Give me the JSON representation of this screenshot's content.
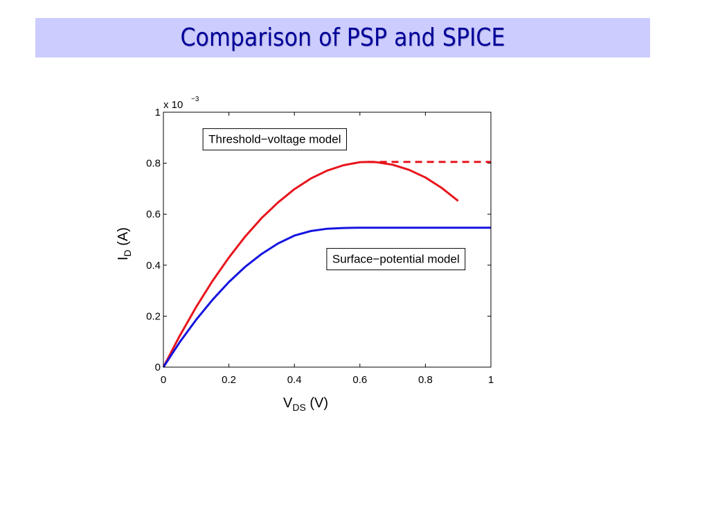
{
  "slide": {
    "title": "Comparison of PSP and SPICE",
    "title_bg_color": "#ccccff",
    "title_text_color": "#000099"
  },
  "chart_data": {
    "type": "line",
    "xlim": [
      0,
      1
    ],
    "ylim": [
      0,
      1
    ],
    "x_ticks": [
      0,
      0.2,
      0.4,
      0.6,
      0.8,
      1
    ],
    "y_ticks": [
      0,
      0.2,
      0.4,
      0.6,
      0.8,
      1
    ],
    "x_tick_labels": [
      "0",
      "0.2",
      "0.4",
      "0.6",
      "0.8",
      "1"
    ],
    "y_tick_labels": [
      "0",
      "0.2",
      "0.4",
      "0.6",
      "0.8",
      "1"
    ],
    "y_scale_exponent": {
      "base": "x 10",
      "exp": "−3"
    },
    "xlabel": {
      "main": "V",
      "sub": "DS",
      "unit": " (V)"
    },
    "ylabel": {
      "main": "I",
      "sub": "D",
      "unit": " (A)"
    },
    "grid": false,
    "series": [
      {
        "color": "#e8141c",
        "style": "solid",
        "x": [
          0,
          0.05,
          0.1,
          0.15,
          0.2,
          0.25,
          0.3,
          0.35,
          0.4,
          0.45,
          0.5,
          0.55,
          0.6,
          0.625,
          0.65,
          0.7,
          0.75,
          0.8,
          0.85,
          0.9
        ],
        "y": [
          0,
          0.123,
          0.236,
          0.338,
          0.43,
          0.513,
          0.585,
          0.646,
          0.698,
          0.74,
          0.771,
          0.792,
          0.804,
          0.805,
          0.804,
          0.794,
          0.774,
          0.744,
          0.703,
          0.652
        ]
      },
      {
        "color": "#e8141c",
        "style": "dashed",
        "x": [
          0.625,
          1
        ],
        "y": [
          0.805,
          0.805
        ]
      },
      {
        "color": "#1414e0",
        "style": "solid",
        "x": [
          0,
          0.05,
          0.1,
          0.15,
          0.2,
          0.25,
          0.3,
          0.35,
          0.4,
          0.45,
          0.5,
          0.55,
          0.6,
          0.7,
          0.8,
          0.9,
          1
        ],
        "y": [
          0,
          0.098,
          0.186,
          0.264,
          0.334,
          0.394,
          0.444,
          0.485,
          0.516,
          0.534,
          0.543,
          0.546,
          0.547,
          0.547,
          0.547,
          0.547,
          0.547
        ]
      }
    ],
    "annotations": [
      {
        "text": "Threshold−voltage model",
        "x": 0.34,
        "y": 0.895
      },
      {
        "text": "Surface−potential model",
        "x": 0.71,
        "y": 0.425
      }
    ]
  }
}
